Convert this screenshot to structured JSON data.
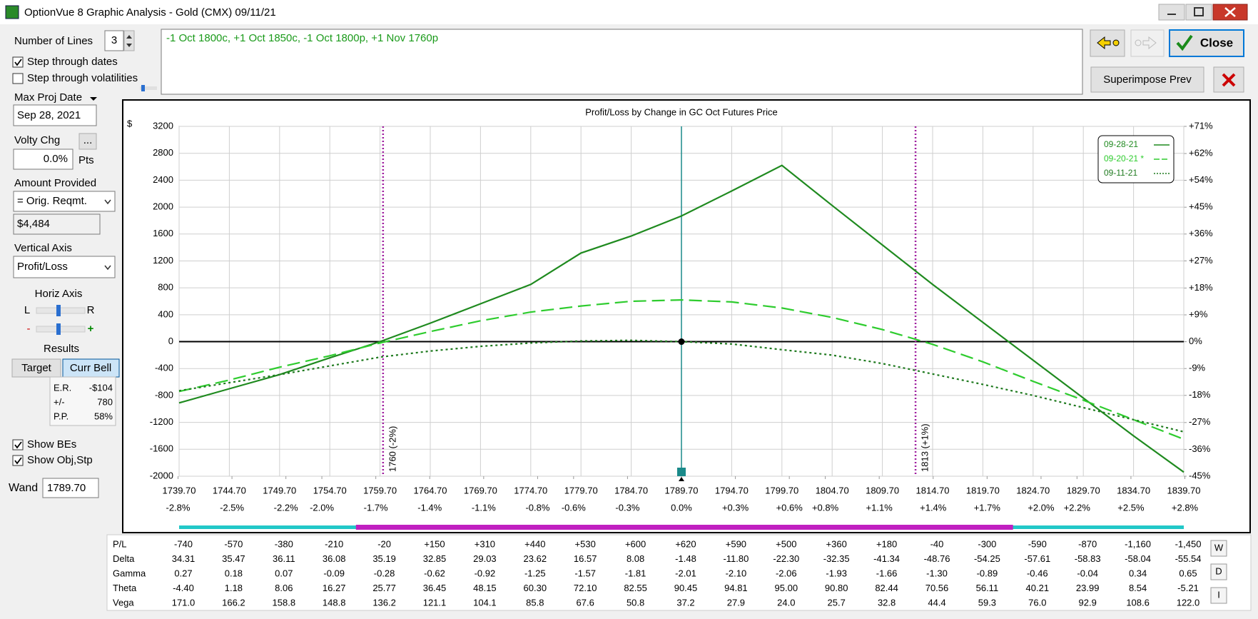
{
  "window": {
    "title": "OptionVue 8 Graphic Analysis - Gold (CMX)  09/11/21"
  },
  "panel": {
    "number_of_lines_label": "Number of Lines",
    "number_of_lines": "3",
    "checks": [
      {
        "label": "Step through dates",
        "checked": true
      },
      {
        "label": "Step through volatilities",
        "checked": false
      },
      {
        "label": "Show BEs",
        "checked": true
      },
      {
        "label": "Show Obj,Stp",
        "checked": true
      }
    ],
    "max_proj_date_label": "Max Proj Date",
    "max_proj_date": "Sep 28, 2021",
    "volty_chg_label": "Volty Chg",
    "volty_button": "...",
    "volty_chg": "0.0%",
    "pts": "Pts",
    "amount_provided_label": "Amount Provided",
    "amount_provided": "= Orig. Reqmt.",
    "amount": "$4,484",
    "vertical_axis_label": "Vertical Axis",
    "vertical_axis": "Profit/Loss",
    "horiz_axis_label": "Horiz Axis",
    "left": "L",
    "right": "R",
    "minus": "-",
    "plus": "+",
    "results_label": "Results",
    "target": "Target",
    "curr_bell": "Curr Bell",
    "results": [
      [
        "E.R.",
        "-$104"
      ],
      [
        "+/-",
        "780"
      ],
      [
        "P.P.",
        "58%"
      ]
    ],
    "wand_label": "Wand",
    "wand": "1789.70"
  },
  "strategy": "-1 Oct 1800c, +1 Oct 1850c, -1 Oct 1800p, +1 Nov 1760p",
  "buttons": {
    "close": "Close",
    "superimpose": "Superimpose Prev"
  },
  "chart_data": {
    "type": "line",
    "title": "Profit/Loss by Change in GC Oct Futures Price",
    "y_unit": "$",
    "x": [
      1739.7,
      1744.7,
      1749.7,
      1754.7,
      1759.7,
      1764.7,
      1769.7,
      1774.7,
      1779.7,
      1784.7,
      1789.7,
      1794.7,
      1799.7,
      1804.7,
      1809.7,
      1814.7,
      1819.7,
      1824.7,
      1829.7,
      1834.7,
      1839.7
    ],
    "xlim": [
      1739.7,
      1839.7
    ],
    "xticks": [
      {
        "value": 1739.7,
        "label": "1739.70"
      },
      {
        "value": 1744.7,
        "label": "1744.70"
      },
      {
        "value": 1749.7,
        "label": "1749.70"
      },
      {
        "value": 1754.7,
        "label": "1754.70"
      },
      {
        "value": 1759.7,
        "label": "1759.70"
      },
      {
        "value": 1764.7,
        "label": "1764.70"
      },
      {
        "value": 1769.7,
        "label": "1769.70"
      },
      {
        "value": 1774.7,
        "label": "1774.70"
      },
      {
        "value": 1779.7,
        "label": "1779.70"
      },
      {
        "value": 1784.7,
        "label": "1784.70"
      },
      {
        "value": 1789.7,
        "label": "1789.70"
      },
      {
        "value": 1794.7,
        "label": "1794.70"
      },
      {
        "value": 1799.7,
        "label": "1799.70"
      },
      {
        "value": 1804.7,
        "label": "1804.70"
      },
      {
        "value": 1809.7,
        "label": "1809.70"
      },
      {
        "value": 1814.7,
        "label": "1814.70"
      },
      {
        "value": 1819.7,
        "label": "1819.70"
      },
      {
        "value": 1824.7,
        "label": "1824.70"
      },
      {
        "value": 1829.7,
        "label": "1829.70"
      },
      {
        "value": 1834.7,
        "label": "1834.70"
      },
      {
        "value": 1839.7,
        "label": "1839.70"
      }
    ],
    "x2lim": [
      -2.794,
      2.794
    ],
    "x2ticks": [
      {
        "value": -2.8,
        "label": "-2.8%"
      },
      {
        "value": -2.5,
        "label": "-2.5%"
      },
      {
        "value": -2.2,
        "label": "-2.2%"
      },
      {
        "value": -2.0,
        "label": "-2.0%"
      },
      {
        "value": -1.7,
        "label": "-1.7%"
      },
      {
        "value": -1.4,
        "label": "-1.4%"
      },
      {
        "value": -1.1,
        "label": "-1.1%"
      },
      {
        "value": -0.8,
        "label": "-0.8%"
      },
      {
        "value": -0.6,
        "label": "-0.6%"
      },
      {
        "value": -0.3,
        "label": "-0.3%"
      },
      {
        "value": 0,
        "label": "0.0%"
      },
      {
        "value": 0.3,
        "label": "+0.3%"
      },
      {
        "value": 0.6,
        "label": "+0.6%"
      },
      {
        "value": 0.8,
        "label": "+0.8%"
      },
      {
        "value": 1.1,
        "label": "+1.1%"
      },
      {
        "value": 1.4,
        "label": "+1.4%"
      },
      {
        "value": 1.7,
        "label": "+1.7%"
      },
      {
        "value": 2.0,
        "label": "+2.0%"
      },
      {
        "value": 2.2,
        "label": "+2.2%"
      },
      {
        "value": 2.5,
        "label": "+2.5%"
      },
      {
        "value": 2.8,
        "label": "+2.8%"
      }
    ],
    "ylim": [
      -2000,
      3200
    ],
    "yticks": [
      3200,
      2800,
      2400,
      2000,
      1600,
      1200,
      800,
      400,
      0,
      -400,
      -800,
      -1200,
      -1600,
      -2000
    ],
    "y2lim": [
      -44.6,
      71.4
    ],
    "y2ticks": [
      {
        "value": 71.4,
        "label": "+71%"
      },
      {
        "value": 62.4,
        "label": "+62%"
      },
      {
        "value": 53.5,
        "label": "+54%"
      },
      {
        "value": 44.6,
        "label": "+45%"
      },
      {
        "value": 35.7,
        "label": "+36%"
      },
      {
        "value": 26.8,
        "label": "+27%"
      },
      {
        "value": 17.8,
        "label": "+18%"
      },
      {
        "value": 8.9,
        "label": "+9%"
      },
      {
        "value": 0,
        "label": "0%"
      },
      {
        "value": -8.9,
        "label": "-9%"
      },
      {
        "value": -17.8,
        "label": "-18%"
      },
      {
        "value": -26.8,
        "label": "-27%"
      },
      {
        "value": -35.7,
        "label": "-36%"
      },
      {
        "value": -44.6,
        "label": "-45%"
      }
    ],
    "grid": true,
    "legend": "top-right",
    "series": [
      {
        "name": "09-28-21",
        "color": "#1f8a1f",
        "dash": "solid",
        "values": [
          -910,
          -700,
          -490,
          -240,
          0,
          275,
          563,
          850,
          1317,
          1570,
          1868,
          2240,
          2620,
          2024,
          1437,
          850,
          287,
          -275,
          -838,
          -1400,
          -1940
        ]
      },
      {
        "name": "09-20-21 *",
        "color": "#2ecc2e",
        "dash": "dashed",
        "values": [
          -740,
          -570,
          -380,
          -210,
          -20,
          150,
          310,
          440,
          530,
          600,
          620,
          590,
          500,
          360,
          180,
          -40,
          -300,
          -590,
          -870,
          -1160,
          -1450
        ]
      },
      {
        "name": "09-11-21",
        "color": "#1f7a1f",
        "dash": "dotted",
        "values": [
          -730,
          -610,
          -490,
          -360,
          -230,
          -140,
          -70,
          -20,
          10,
          20,
          0,
          -35,
          -120,
          -200,
          -325,
          -480,
          -635,
          -800,
          -980,
          -1160,
          -1340
        ]
      }
    ],
    "breakevens": [
      {
        "value": 1760,
        "label": "1760 (-2%)"
      },
      {
        "value": 1813,
        "label": "1813 (+1%)"
      }
    ],
    "wand_x": 1789.7,
    "range_bar": [
      1757.3,
      1822.7
    ]
  },
  "table": {
    "rows": [
      [
        "P/L",
        "-740",
        "-570",
        "-380",
        "-210",
        "-20",
        "+150",
        "+310",
        "+440",
        "+530",
        "+600",
        "+620",
        "+590",
        "+500",
        "+360",
        "+180",
        "-40",
        "-300",
        "-590",
        "-870",
        "-1,160",
        "-1,450"
      ],
      [
        "Delta",
        "34.31",
        "35.47",
        "36.11",
        "36.08",
        "35.19",
        "32.85",
        "29.03",
        "23.62",
        "16.57",
        "8.08",
        "-1.48",
        "-11.80",
        "-22.30",
        "-32.35",
        "-41.34",
        "-48.76",
        "-54.25",
        "-57.61",
        "-58.83",
        "-58.04",
        "-55.54"
      ],
      [
        "Gamma",
        "0.27",
        "0.18",
        "0.07",
        "-0.09",
        "-0.28",
        "-0.62",
        "-0.92",
        "-1.25",
        "-1.57",
        "-1.81",
        "-2.01",
        "-2.10",
        "-2.06",
        "-1.93",
        "-1.66",
        "-1.30",
        "-0.89",
        "-0.46",
        "-0.04",
        "0.34",
        "0.65"
      ],
      [
        "Theta",
        "-4.40",
        "1.18",
        "8.06",
        "16.27",
        "25.77",
        "36.45",
        "48.15",
        "60.30",
        "72.10",
        "82.55",
        "90.45",
        "94.81",
        "95.00",
        "90.80",
        "82.44",
        "70.56",
        "56.11",
        "40.21",
        "23.99",
        "8.54",
        "-5.21"
      ],
      [
        "Vega",
        "171.0",
        "166.2",
        "158.8",
        "148.8",
        "136.2",
        "121.1",
        "104.1",
        "85.8",
        "67.6",
        "50.8",
        "37.2",
        "27.9",
        "24.0",
        "25.7",
        "32.8",
        "44.4",
        "59.3",
        "76.0",
        "92.9",
        "108.6",
        "122.0"
      ]
    ],
    "buttons": [
      "W",
      "D",
      "I"
    ]
  }
}
